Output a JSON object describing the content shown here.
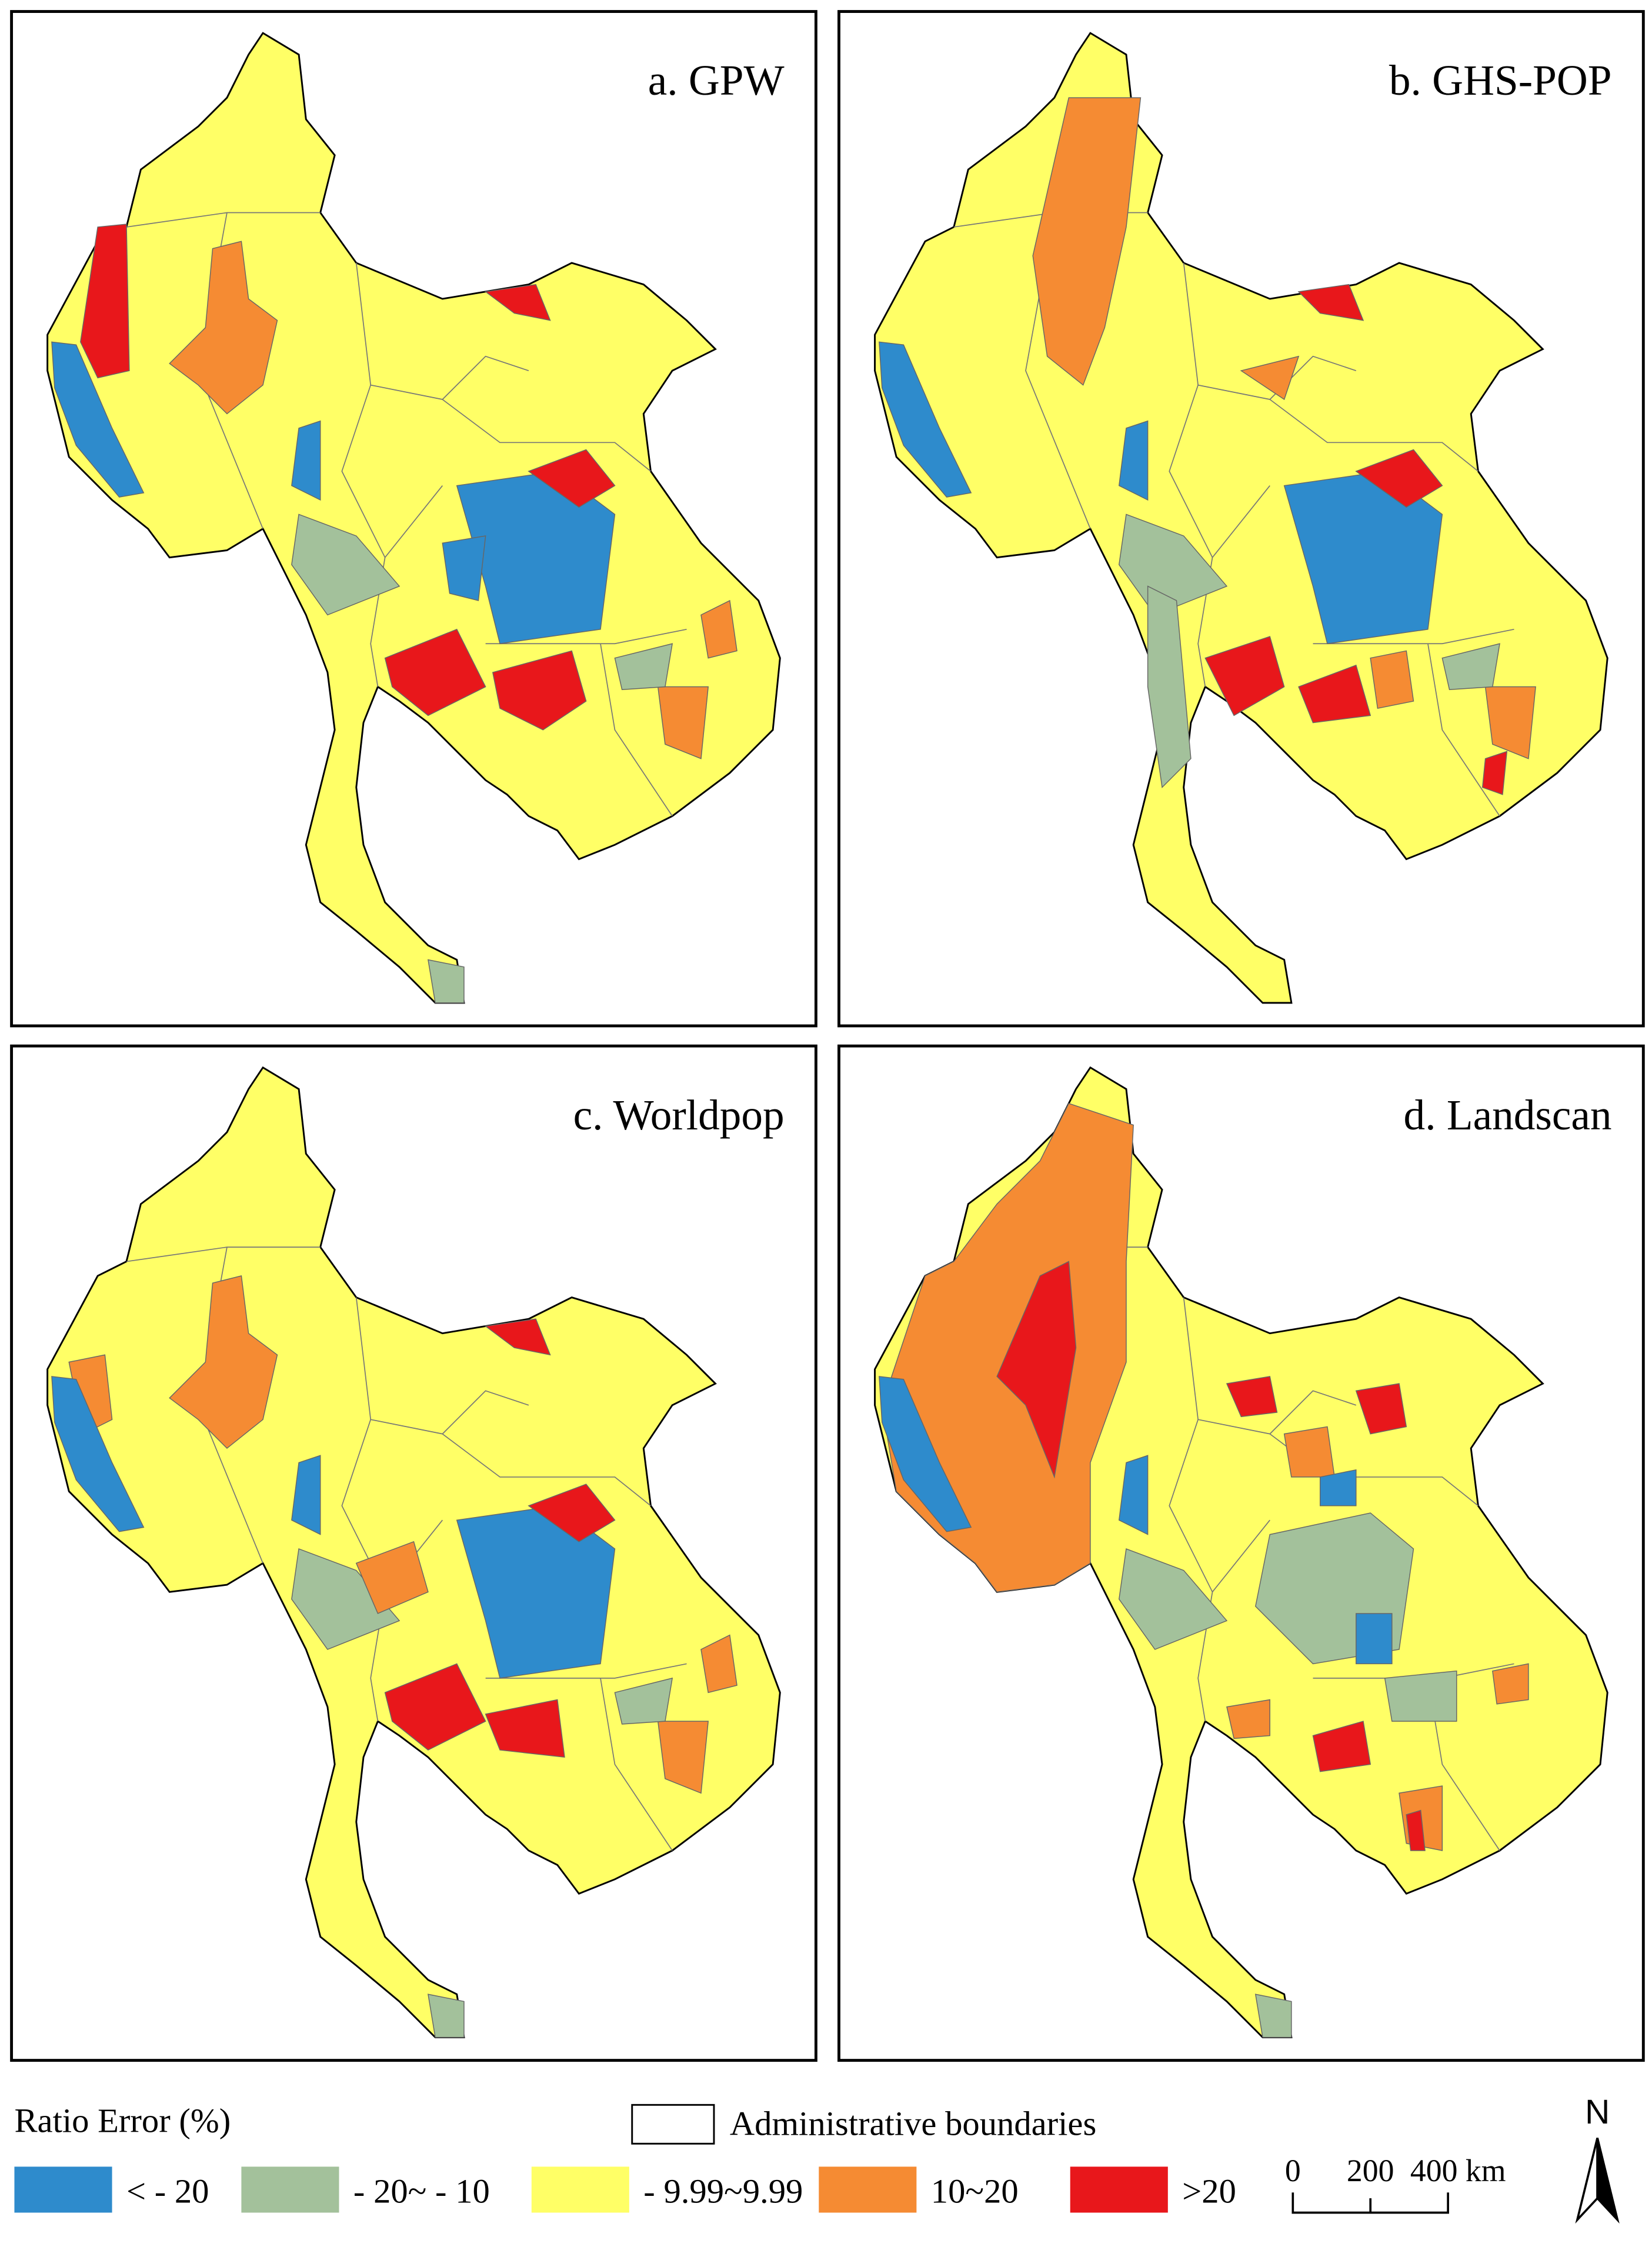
{
  "panels": [
    {
      "title": "a. GPW"
    },
    {
      "title": "b. GHS-POP"
    },
    {
      "title": "c. Worldpop"
    },
    {
      "title": "d. Landscan"
    }
  ],
  "legend": {
    "title": "Ratio Error (%)",
    "boundary": "Administrative boundaries",
    "classes": [
      {
        "label": "< - 20",
        "color": "#2e8bcc"
      },
      {
        "label": "- 20~ - 10",
        "color": "#a3c19b"
      },
      {
        "label": "- 9.99~9.99",
        "color": "#ffff66"
      },
      {
        "label": "10~20",
        "color": "#f58b33"
      },
      {
        "label": ">20",
        "color": "#e8171b"
      }
    ]
  },
  "scale_bar": {
    "labels": [
      "0",
      "200",
      "400 km"
    ]
  },
  "north": "N"
}
